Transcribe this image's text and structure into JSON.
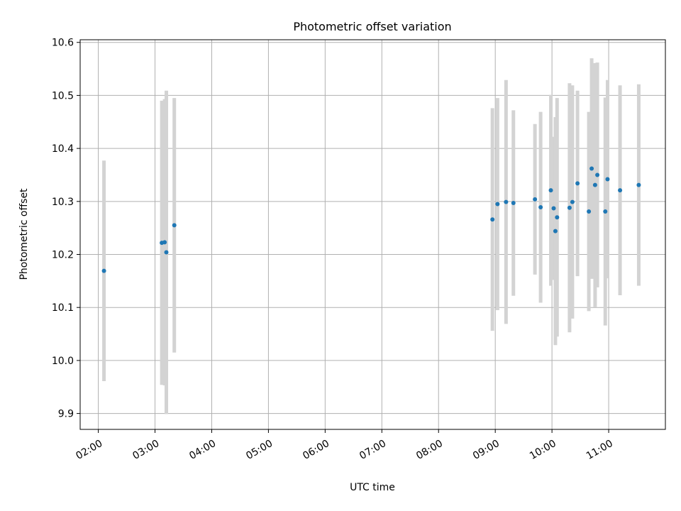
{
  "chart_data": {
    "type": "scatter",
    "title": "Photometric offset variation",
    "xlabel": "UTC time",
    "ylabel": "Photometric offset",
    "x_unit": "hours UTC",
    "xlim": [
      1.68,
      12.0
    ],
    "ylim": [
      9.87,
      10.605
    ],
    "x_ticks": [
      {
        "label": "02:00",
        "value": 2
      },
      {
        "label": "03:00",
        "value": 3
      },
      {
        "label": "04:00",
        "value": 4
      },
      {
        "label": "05:00",
        "value": 5
      },
      {
        "label": "06:00",
        "value": 6
      },
      {
        "label": "07:00",
        "value": 7
      },
      {
        "label": "08:00",
        "value": 8
      },
      {
        "label": "09:00",
        "value": 9
      },
      {
        "label": "10:00",
        "value": 10
      },
      {
        "label": "11:00",
        "value": 11
      }
    ],
    "y_ticks": [
      {
        "label": "9.9",
        "value": 9.9
      },
      {
        "label": "10.0",
        "value": 10.0
      },
      {
        "label": "10.1",
        "value": 10.1
      },
      {
        "label": "10.2",
        "value": 10.2
      },
      {
        "label": "10.3",
        "value": 10.3
      },
      {
        "label": "10.4",
        "value": 10.4
      },
      {
        "label": "10.5",
        "value": 10.5
      },
      {
        "label": "10.6",
        "value": 10.6
      }
    ],
    "grid": true,
    "colors": {
      "point": "#1f77b4",
      "errorbar": "#d3d3d3",
      "grid": "#b0b0b0"
    },
    "points": [
      {
        "x": 2.1,
        "y": 10.169,
        "err": 0.208
      },
      {
        "x": 3.12,
        "y": 10.222,
        "err": 0.268
      },
      {
        "x": 3.17,
        "y": 10.223,
        "err": 0.27
      },
      {
        "x": 3.2,
        "y": 10.204,
        "err": 0.305
      },
      {
        "x": 3.34,
        "y": 10.255,
        "err": 0.24
      },
      {
        "x": 8.95,
        "y": 10.266,
        "err": 0.21
      },
      {
        "x": 9.04,
        "y": 10.295,
        "err": 0.2
      },
      {
        "x": 9.19,
        "y": 10.299,
        "err": 0.23
      },
      {
        "x": 9.32,
        "y": 10.297,
        "err": 0.175
      },
      {
        "x": 9.7,
        "y": 10.304,
        "err": 0.142
      },
      {
        "x": 9.8,
        "y": 10.289,
        "err": 0.18
      },
      {
        "x": 9.98,
        "y": 10.321,
        "err": 0.18
      },
      {
        "x": 10.03,
        "y": 10.287,
        "err": 0.135
      },
      {
        "x": 10.06,
        "y": 10.244,
        "err": 0.215
      },
      {
        "x": 10.09,
        "y": 10.27,
        "err": 0.225
      },
      {
        "x": 10.31,
        "y": 10.288,
        "err": 0.235
      },
      {
        "x": 10.36,
        "y": 10.299,
        "err": 0.22
      },
      {
        "x": 10.45,
        "y": 10.334,
        "err": 0.175
      },
      {
        "x": 10.65,
        "y": 10.281,
        "err": 0.188
      },
      {
        "x": 10.7,
        "y": 10.362,
        "err": 0.208
      },
      {
        "x": 10.76,
        "y": 10.331,
        "err": 0.23
      },
      {
        "x": 10.8,
        "y": 10.35,
        "err": 0.212
      },
      {
        "x": 10.94,
        "y": 10.281,
        "err": 0.215
      },
      {
        "x": 10.98,
        "y": 10.342,
        "err": 0.187
      },
      {
        "x": 11.2,
        "y": 10.321,
        "err": 0.198
      },
      {
        "x": 11.53,
        "y": 10.331,
        "err": 0.19
      }
    ]
  }
}
